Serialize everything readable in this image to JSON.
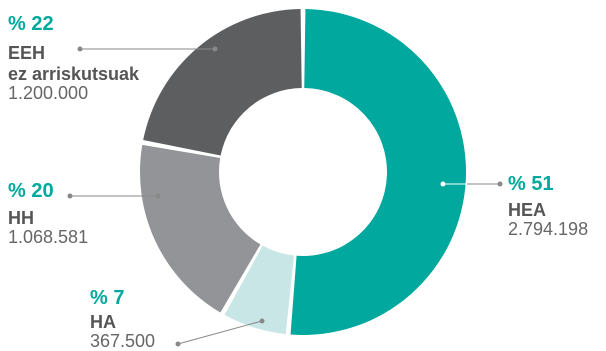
{
  "chart_data": {
    "type": "pie",
    "title": "",
    "series": [
      {
        "percent_label": "% 51",
        "label": "HEA",
        "value_label": "2.794.198",
        "value": 2794198,
        "color": "#00a89d"
      },
      {
        "percent_label": "% 7",
        "label": "HA",
        "value_label": "367.500",
        "value": 367500,
        "color": "#c8e6e5"
      },
      {
        "percent_label": "% 20",
        "label": "HH",
        "value_label": "1.068.581",
        "value": 1068581,
        "color": "#929497"
      },
      {
        "percent_label": "% 22",
        "label": "EEH\nez arriskutsuak",
        "label_line1": "EEH",
        "label_line2": "ez arriskutsuak",
        "value_label": "1.200.000",
        "value": 1200000,
        "color": "#5d5e60"
      }
    ],
    "accent_color": "#00a89d"
  }
}
